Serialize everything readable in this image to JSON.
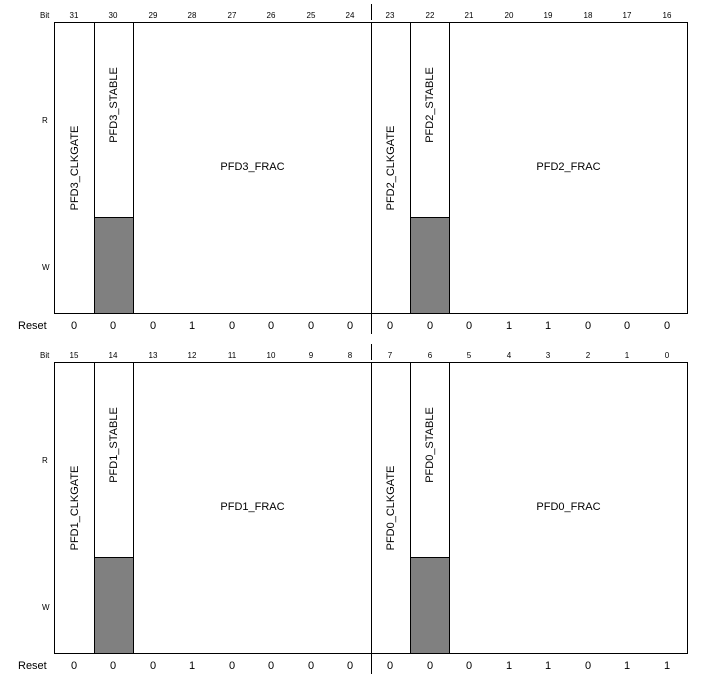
{
  "labels": {
    "bit": "Bit",
    "read": "R",
    "write": "W",
    "reset": "Reset"
  },
  "rows": [
    {
      "bits": [
        "31",
        "30",
        "29",
        "28",
        "27",
        "26",
        "25",
        "24",
        "23",
        "22",
        "21",
        "20",
        "19",
        "18",
        "17",
        "16"
      ],
      "fields": [
        {
          "name": "PFD3_CLKGATE",
          "orientation": "vertical"
        },
        {
          "name": "PFD3_STABLE",
          "orientation": "vertical",
          "read_only": true
        },
        {
          "name": "PFD3_FRAC",
          "orientation": "horizontal"
        },
        {
          "name": "PFD2_CLKGATE",
          "orientation": "vertical"
        },
        {
          "name": "PFD2_STABLE",
          "orientation": "vertical",
          "read_only": true
        },
        {
          "name": "PFD2_FRAC",
          "orientation": "horizontal"
        }
      ],
      "reset": [
        "0",
        "0",
        "0",
        "1",
        "0",
        "0",
        "0",
        "0",
        "0",
        "0",
        "0",
        "1",
        "1",
        "0",
        "0",
        "0"
      ]
    },
    {
      "bits": [
        "15",
        "14",
        "13",
        "12",
        "11",
        "10",
        "9",
        "8",
        "7",
        "6",
        "5",
        "4",
        "3",
        "2",
        "1",
        "0"
      ],
      "fields": [
        {
          "name": "PFD1_CLKGATE",
          "orientation": "vertical"
        },
        {
          "name": "PFD1_STABLE",
          "orientation": "vertical",
          "read_only": true
        },
        {
          "name": "PFD1_FRAC",
          "orientation": "horizontal"
        },
        {
          "name": "PFD0_CLKGATE",
          "orientation": "vertical"
        },
        {
          "name": "PFD0_STABLE",
          "orientation": "vertical",
          "read_only": true
        },
        {
          "name": "PFD0_FRAC",
          "orientation": "horizontal"
        }
      ],
      "reset": [
        "0",
        "0",
        "0",
        "1",
        "0",
        "0",
        "0",
        "0",
        "0",
        "0",
        "0",
        "1",
        "1",
        "0",
        "1",
        "1"
      ]
    }
  ]
}
